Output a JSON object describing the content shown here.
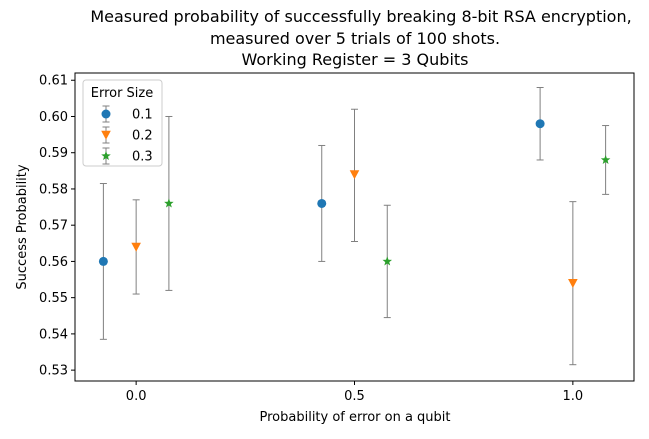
{
  "chart_data": {
    "type": "scatter",
    "title_lines": [
      "Measured probability of successfully breaking 8-bit RSA encryption,",
      "measured over 5 trials of 100 shots.",
      "Working Register = 3 Qubits"
    ],
    "xlabel": "Probability of error on a qubit",
    "ylabel": "Success Probability",
    "xlim": [
      -0.14,
      1.14
    ],
    "ylim": [
      0.527,
      0.612
    ],
    "x_ticks": [
      0.0,
      0.5,
      1.0
    ],
    "x_tick_labels": [
      "0.0",
      "0.5",
      "1.0"
    ],
    "y_ticks": [
      0.53,
      0.54,
      0.55,
      0.56,
      0.57,
      0.58,
      0.59,
      0.6,
      0.61
    ],
    "y_tick_labels": [
      "0.53",
      "0.54",
      "0.55",
      "0.56",
      "0.57",
      "0.58",
      "0.59",
      "0.60",
      "0.61"
    ],
    "grid": false,
    "legend": {
      "title": "Error Size",
      "placement": "top-left"
    },
    "series": [
      {
        "name": "0.1",
        "color": "#1f77b4",
        "marker": "circle",
        "x": [
          -0.075,
          0.425,
          0.925
        ],
        "y": [
          0.56,
          0.576,
          0.598
        ],
        "err_low": [
          0.5385,
          0.56,
          0.588
        ],
        "err_high": [
          0.5815,
          0.592,
          0.608
        ]
      },
      {
        "name": "0.2",
        "color": "#ff7f0e",
        "marker": "triangle-down",
        "x": [
          0.0,
          0.5,
          1.0
        ],
        "y": [
          0.564,
          0.584,
          0.554
        ],
        "err_low": [
          0.551,
          0.5655,
          0.5315
        ],
        "err_high": [
          0.577,
          0.602,
          0.5765
        ]
      },
      {
        "name": "0.3",
        "color": "#2ca02c",
        "marker": "star",
        "x": [
          0.075,
          0.575,
          1.075
        ],
        "y": [
          0.576,
          0.56,
          0.588
        ],
        "err_low": [
          0.552,
          0.5445,
          0.5785
        ],
        "err_high": [
          0.6,
          0.5755,
          0.5975
        ]
      }
    ]
  }
}
